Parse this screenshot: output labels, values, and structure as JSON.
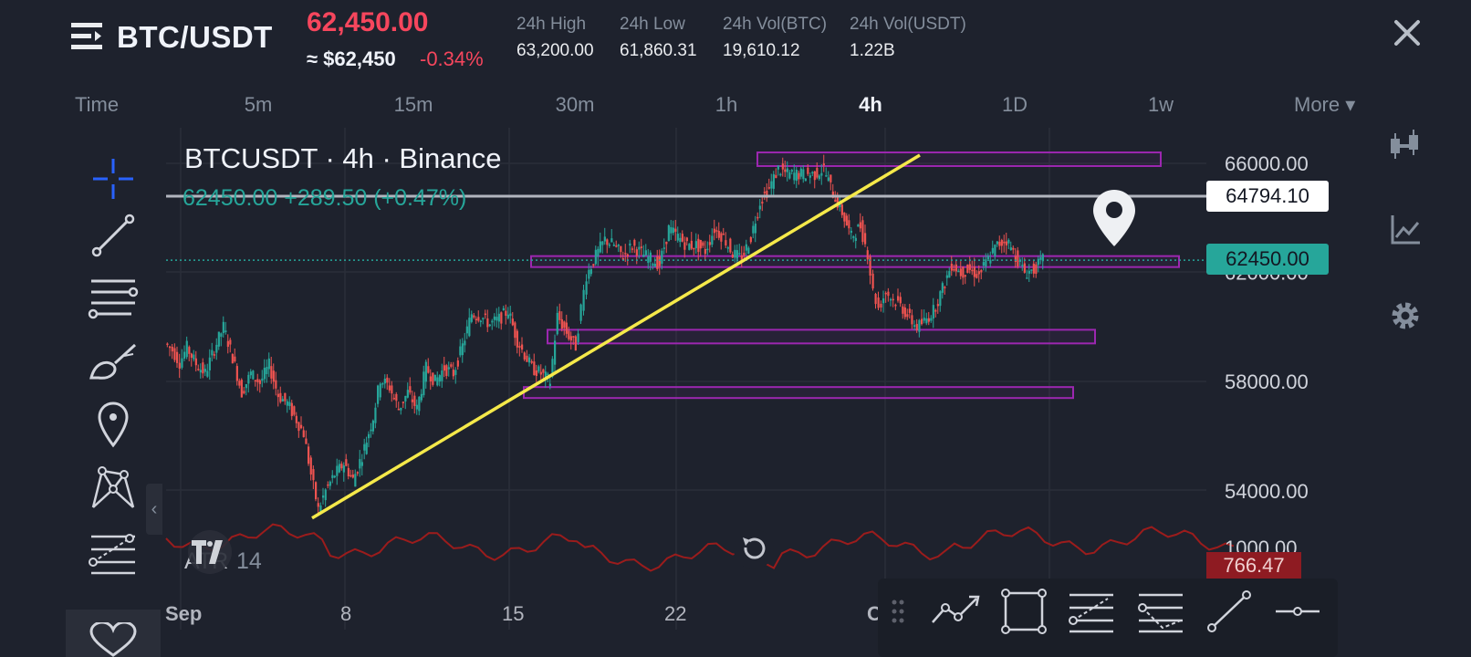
{
  "header": {
    "pair": "BTC/USDT",
    "last_price": "62,450.00",
    "approx_usd": "≈ $62,450",
    "change_pct": "-0.34%",
    "stats": [
      {
        "label": "24h High",
        "value": "63,200.00"
      },
      {
        "label": "24h Low",
        "value": "61,860.31"
      },
      {
        "label": "24h Vol(BTC)",
        "value": "19,610.12"
      },
      {
        "label": "24h Vol(USDT)",
        "value": "1.22B"
      }
    ]
  },
  "timeframes": {
    "label": "Time",
    "items": [
      "5m",
      "15m",
      "30m",
      "1h",
      "4h",
      "1D",
      "1w"
    ],
    "active": "4h",
    "more": "More ▾"
  },
  "chart": {
    "symbol_title": "BTCUSDT · 4h · Binance",
    "ohlc_line": "62450.00  +289.50 (+0.47%)",
    "price_axis_labels": [
      "66000.00",
      "62000.00",
      "58000.00",
      "54000.00"
    ],
    "hline_tag": "64794.10",
    "last_price_tag": "62450.00",
    "atr_label": "ATR",
    "atr_period": "14",
    "atr_axis_label": "1000.00",
    "atr_value_tag": "766.47",
    "date_labels": [
      "Sep",
      "8",
      "15",
      "22",
      "O"
    ],
    "colors": {
      "up": "#26a69a",
      "down": "#ef5350",
      "trendline": "#f5e94a",
      "zone": "#9c27b0",
      "atr": "#9b1c1c",
      "hline": "#b2b5be"
    }
  },
  "chart_data": {
    "type": "candlestick",
    "timeframe": "4h",
    "y_range": [
      52200,
      67500
    ],
    "ohlc_path": [
      [
        0,
        59400
      ],
      [
        8,
        59150
      ],
      [
        16,
        58700
      ],
      [
        24,
        59250
      ],
      [
        34,
        58650
      ],
      [
        44,
        58300
      ],
      [
        54,
        59200
      ],
      [
        64,
        60000
      ],
      [
        74,
        58900
      ],
      [
        84,
        57600
      ],
      [
        94,
        58300
      ],
      [
        104,
        57950
      ],
      [
        114,
        58600
      ],
      [
        124,
        57500
      ],
      [
        134,
        57200
      ],
      [
        144,
        56600
      ],
      [
        152,
        56100
      ],
      [
        160,
        54600
      ],
      [
        168,
        53300
      ],
      [
        176,
        54000
      ],
      [
        186,
        54600
      ],
      [
        196,
        55000
      ],
      [
        206,
        54400
      ],
      [
        216,
        55300
      ],
      [
        228,
        56700
      ],
      [
        236,
        58100
      ],
      [
        246,
        57800
      ],
      [
        256,
        57000
      ],
      [
        266,
        57600
      ],
      [
        276,
        57000
      ],
      [
        286,
        58500
      ],
      [
        296,
        58000
      ],
      [
        306,
        58500
      ],
      [
        316,
        58300
      ],
      [
        326,
        59300
      ],
      [
        336,
        60500
      ],
      [
        346,
        60400
      ],
      [
        356,
        60100
      ],
      [
        366,
        60300
      ],
      [
        376,
        60600
      ],
      [
        386,
        59500
      ],
      [
        394,
        59000
      ],
      [
        402,
        58500
      ],
      [
        412,
        58300
      ],
      [
        422,
        58000
      ],
      [
        430,
        60400
      ],
      [
        440,
        59800
      ],
      [
        450,
        59300
      ],
      [
        456,
        60700
      ],
      [
        462,
        61900
      ],
      [
        472,
        62600
      ],
      [
        482,
        63200
      ],
      [
        492,
        63000
      ],
      [
        502,
        62600
      ],
      [
        512,
        63000
      ],
      [
        522,
        62700
      ],
      [
        532,
        62500
      ],
      [
        542,
        62300
      ],
      [
        552,
        63600
      ],
      [
        562,
        63300
      ],
      [
        572,
        63000
      ],
      [
        582,
        63000
      ],
      [
        592,
        62800
      ],
      [
        602,
        63600
      ],
      [
        612,
        63300
      ],
      [
        622,
        62700
      ],
      [
        632,
        62500
      ],
      [
        642,
        63300
      ],
      [
        652,
        64600
      ],
      [
        662,
        65100
      ],
      [
        672,
        65800
      ],
      [
        682,
        65600
      ],
      [
        692,
        65600
      ],
      [
        702,
        65600
      ],
      [
        712,
        65600
      ],
      [
        722,
        65800
      ],
      [
        732,
        64900
      ],
      [
        742,
        64200
      ],
      [
        752,
        63300
      ],
      [
        762,
        63700
      ],
      [
        770,
        62700
      ],
      [
        776,
        61300
      ],
      [
        782,
        60700
      ],
      [
        790,
        61300
      ],
      [
        798,
        61000
      ],
      [
        806,
        60800
      ],
      [
        816,
        60300
      ],
      [
        824,
        60000
      ],
      [
        832,
        60200
      ],
      [
        842,
        60600
      ],
      [
        852,
        61400
      ],
      [
        862,
        62300
      ],
      [
        872,
        62000
      ],
      [
        882,
        62100
      ],
      [
        892,
        61900
      ],
      [
        902,
        62500
      ],
      [
        912,
        63000
      ],
      [
        922,
        63200
      ],
      [
        932,
        62600
      ],
      [
        942,
        62000
      ],
      [
        952,
        62100
      ],
      [
        962,
        62450
      ]
    ],
    "trendline": {
      "from": [
        160,
        53000
      ],
      "to": [
        826,
        66300
      ]
    },
    "horizontal_line": 64794.1,
    "zones": [
      {
        "x": [
          648,
          1090
        ],
        "y": [
          65900,
          66400
        ]
      },
      {
        "x": [
          400,
          1110
        ],
        "y": [
          62200,
          62600
        ]
      },
      {
        "x": [
          418,
          1018
        ],
        "y": [
          59400,
          59900
        ]
      },
      {
        "x": [
          392,
          994
        ],
        "y": [
          57400,
          57800
        ]
      }
    ],
    "last_price": 62450.0,
    "atr_value": 766.47
  },
  "toolbar": {
    "left": [
      "crosshair-tool",
      "trend-line-tool",
      "horizontal-lines-tool",
      "brush-tool",
      "pin-tool",
      "pattern-tool",
      "fib-tool"
    ],
    "right": [
      "candle-type-tool",
      "indicators-tool",
      "settings-tool"
    ],
    "drawing": [
      "path-tool",
      "rectangle-tool",
      "fib-retracement-tool",
      "fib-extension-tool",
      "ray-tool",
      "hline-tool"
    ]
  }
}
